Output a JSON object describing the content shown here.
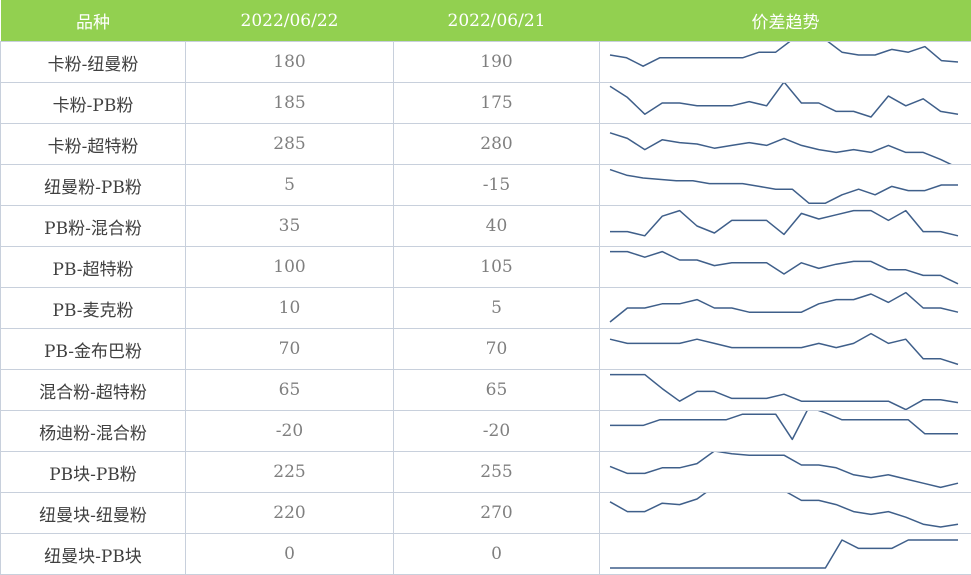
{
  "headers": [
    "品种",
    "2022/06/22",
    "2022/06/21",
    "价差趋势"
  ],
  "colors": {
    "header_bg": "#92d050",
    "header_text": "#ffffff",
    "sparkline": "#3f5f8a",
    "border": "#c8d0dc"
  },
  "chart_data": {
    "type": "table",
    "columns": [
      "品种",
      "2022/06/22",
      "2022/06/21",
      "价差趋势"
    ],
    "rows": [
      {
        "name": "卡粉-纽曼粉",
        "v1": "180",
        "v2": "190",
        "trend": [
          0.25,
          0.35,
          0.65,
          0.35,
          0.35,
          0.35,
          0.35,
          0.35,
          0.35,
          0.15,
          0.15,
          -0.3,
          -0.3,
          -0.3,
          0.15,
          0.25,
          0.25,
          0.05,
          0.15,
          -0.05,
          0.45,
          0.5
        ]
      },
      {
        "name": "卡粉-PB粉",
        "v1": "185",
        "v2": "175",
        "trend": [
          -0.1,
          0.3,
          0.9,
          0.5,
          0.5,
          0.6,
          0.6,
          0.6,
          0.45,
          0.6,
          -0.25,
          0.5,
          0.5,
          0.8,
          0.8,
          1.0,
          0.25,
          0.6,
          0.35,
          0.8,
          0.9
        ]
      },
      {
        "name": "卡粉-超特粉",
        "v1": "285",
        "v2": "280",
        "trend": [
          0.1,
          0.3,
          0.7,
          0.35,
          0.45,
          0.5,
          0.65,
          0.55,
          0.45,
          0.55,
          0.3,
          0.55,
          0.7,
          0.8,
          0.7,
          0.8,
          0.55,
          0.8,
          0.8,
          1.05,
          1.35
        ]
      },
      {
        "name": "纽曼粉-PB粉",
        "v1": "5",
        "v2": "-15",
        "trend": [
          -0.05,
          0.15,
          0.25,
          0.3,
          0.35,
          0.35,
          0.45,
          0.45,
          0.45,
          0.55,
          0.65,
          0.65,
          1.15,
          1.15,
          0.85,
          0.65,
          0.85,
          0.55,
          0.7,
          0.7,
          0.5,
          0.5
        ]
      },
      {
        "name": "PB粉-混合粉",
        "v1": "35",
        "v2": "40",
        "trend": [
          0.7,
          0.7,
          0.85,
          0.15,
          -0.05,
          0.5,
          0.75,
          0.3,
          0.3,
          0.3,
          0.8,
          0.05,
          0.25,
          0.1,
          -0.05,
          -0.05,
          0.3,
          -0.05,
          0.7,
          0.7,
          0.85
        ]
      },
      {
        "name": "PB-超特粉",
        "v1": "100",
        "v2": "105",
        "trend": [
          -0.05,
          -0.05,
          0.15,
          -0.05,
          0.25,
          0.25,
          0.45,
          0.35,
          0.35,
          0.35,
          0.75,
          0.35,
          0.55,
          0.4,
          0.3,
          0.3,
          0.6,
          0.6,
          0.8,
          0.8,
          1.1
        ]
      },
      {
        "name": "PB-麦克粉",
        "v1": "10",
        "v2": "5",
        "trend": [
          1.0,
          0.5,
          0.5,
          0.35,
          0.35,
          0.2,
          0.5,
          0.5,
          0.65,
          0.65,
          0.65,
          0.65,
          0.35,
          0.2,
          0.2,
          0.0,
          0.3,
          -0.05,
          0.5,
          0.5,
          0.65
        ]
      },
      {
        "name": "PB-金布巴粉",
        "v1": "70",
        "v2": "70",
        "trend": [
          0.15,
          0.3,
          0.3,
          0.3,
          0.3,
          0.15,
          0.3,
          0.45,
          0.45,
          0.45,
          0.45,
          0.45,
          0.3,
          0.45,
          0.3,
          -0.05,
          0.3,
          0.15,
          0.85,
          0.85,
          1.05
        ]
      },
      {
        "name": "混合粉-超特粉",
        "v1": "65",
        "v2": "65",
        "trend": [
          -0.05,
          -0.05,
          -0.05,
          0.45,
          0.9,
          0.55,
          0.55,
          0.8,
          0.8,
          0.8,
          0.65,
          0.9,
          0.9,
          0.9,
          0.9,
          0.9,
          0.9,
          1.2,
          0.85,
          0.85,
          0.95
        ]
      },
      {
        "name": "杨迪粉-混合粉",
        "v1": "-20",
        "v2": "-20",
        "trend": [
          0.3,
          0.3,
          0.3,
          0.1,
          0.1,
          0.1,
          0.1,
          0.1,
          -0.1,
          -0.1,
          -0.1,
          0.8,
          -0.35,
          -0.15,
          0.1,
          0.1,
          0.1,
          0.1,
          0.1,
          0.6,
          0.6,
          0.6
        ]
      },
      {
        "name": "PB块-PB粉",
        "v1": "225",
        "v2": "255",
        "trend": [
          0.3,
          0.55,
          0.55,
          0.35,
          0.35,
          0.2,
          -0.25,
          -0.15,
          -0.1,
          -0.1,
          -0.1,
          0.25,
          0.25,
          0.35,
          0.6,
          0.7,
          0.6,
          0.75,
          0.9,
          1.05,
          0.9
        ]
      },
      {
        "name": "纽曼块-纽曼粉",
        "v1": "220",
        "v2": "270",
        "trend": [
          0.1,
          0.45,
          0.45,
          0.15,
          0.2,
          0.0,
          -0.45,
          -0.35,
          -0.3,
          -0.3,
          -0.3,
          0.05,
          0.05,
          0.2,
          0.45,
          0.55,
          0.45,
          0.65,
          0.9,
          1.0,
          0.9
        ]
      },
      {
        "name": "纽曼块-PB块",
        "v1": "0",
        "v2": "0",
        "trend": [
          1.0,
          1.0,
          1.0,
          1.0,
          1.0,
          1.0,
          1.0,
          1.0,
          1.0,
          1.0,
          1.0,
          1.0,
          1.0,
          1.0,
          0.0,
          0.3,
          0.3,
          0.3,
          0.0,
          0.0,
          0.0,
          0.0
        ]
      }
    ]
  }
}
